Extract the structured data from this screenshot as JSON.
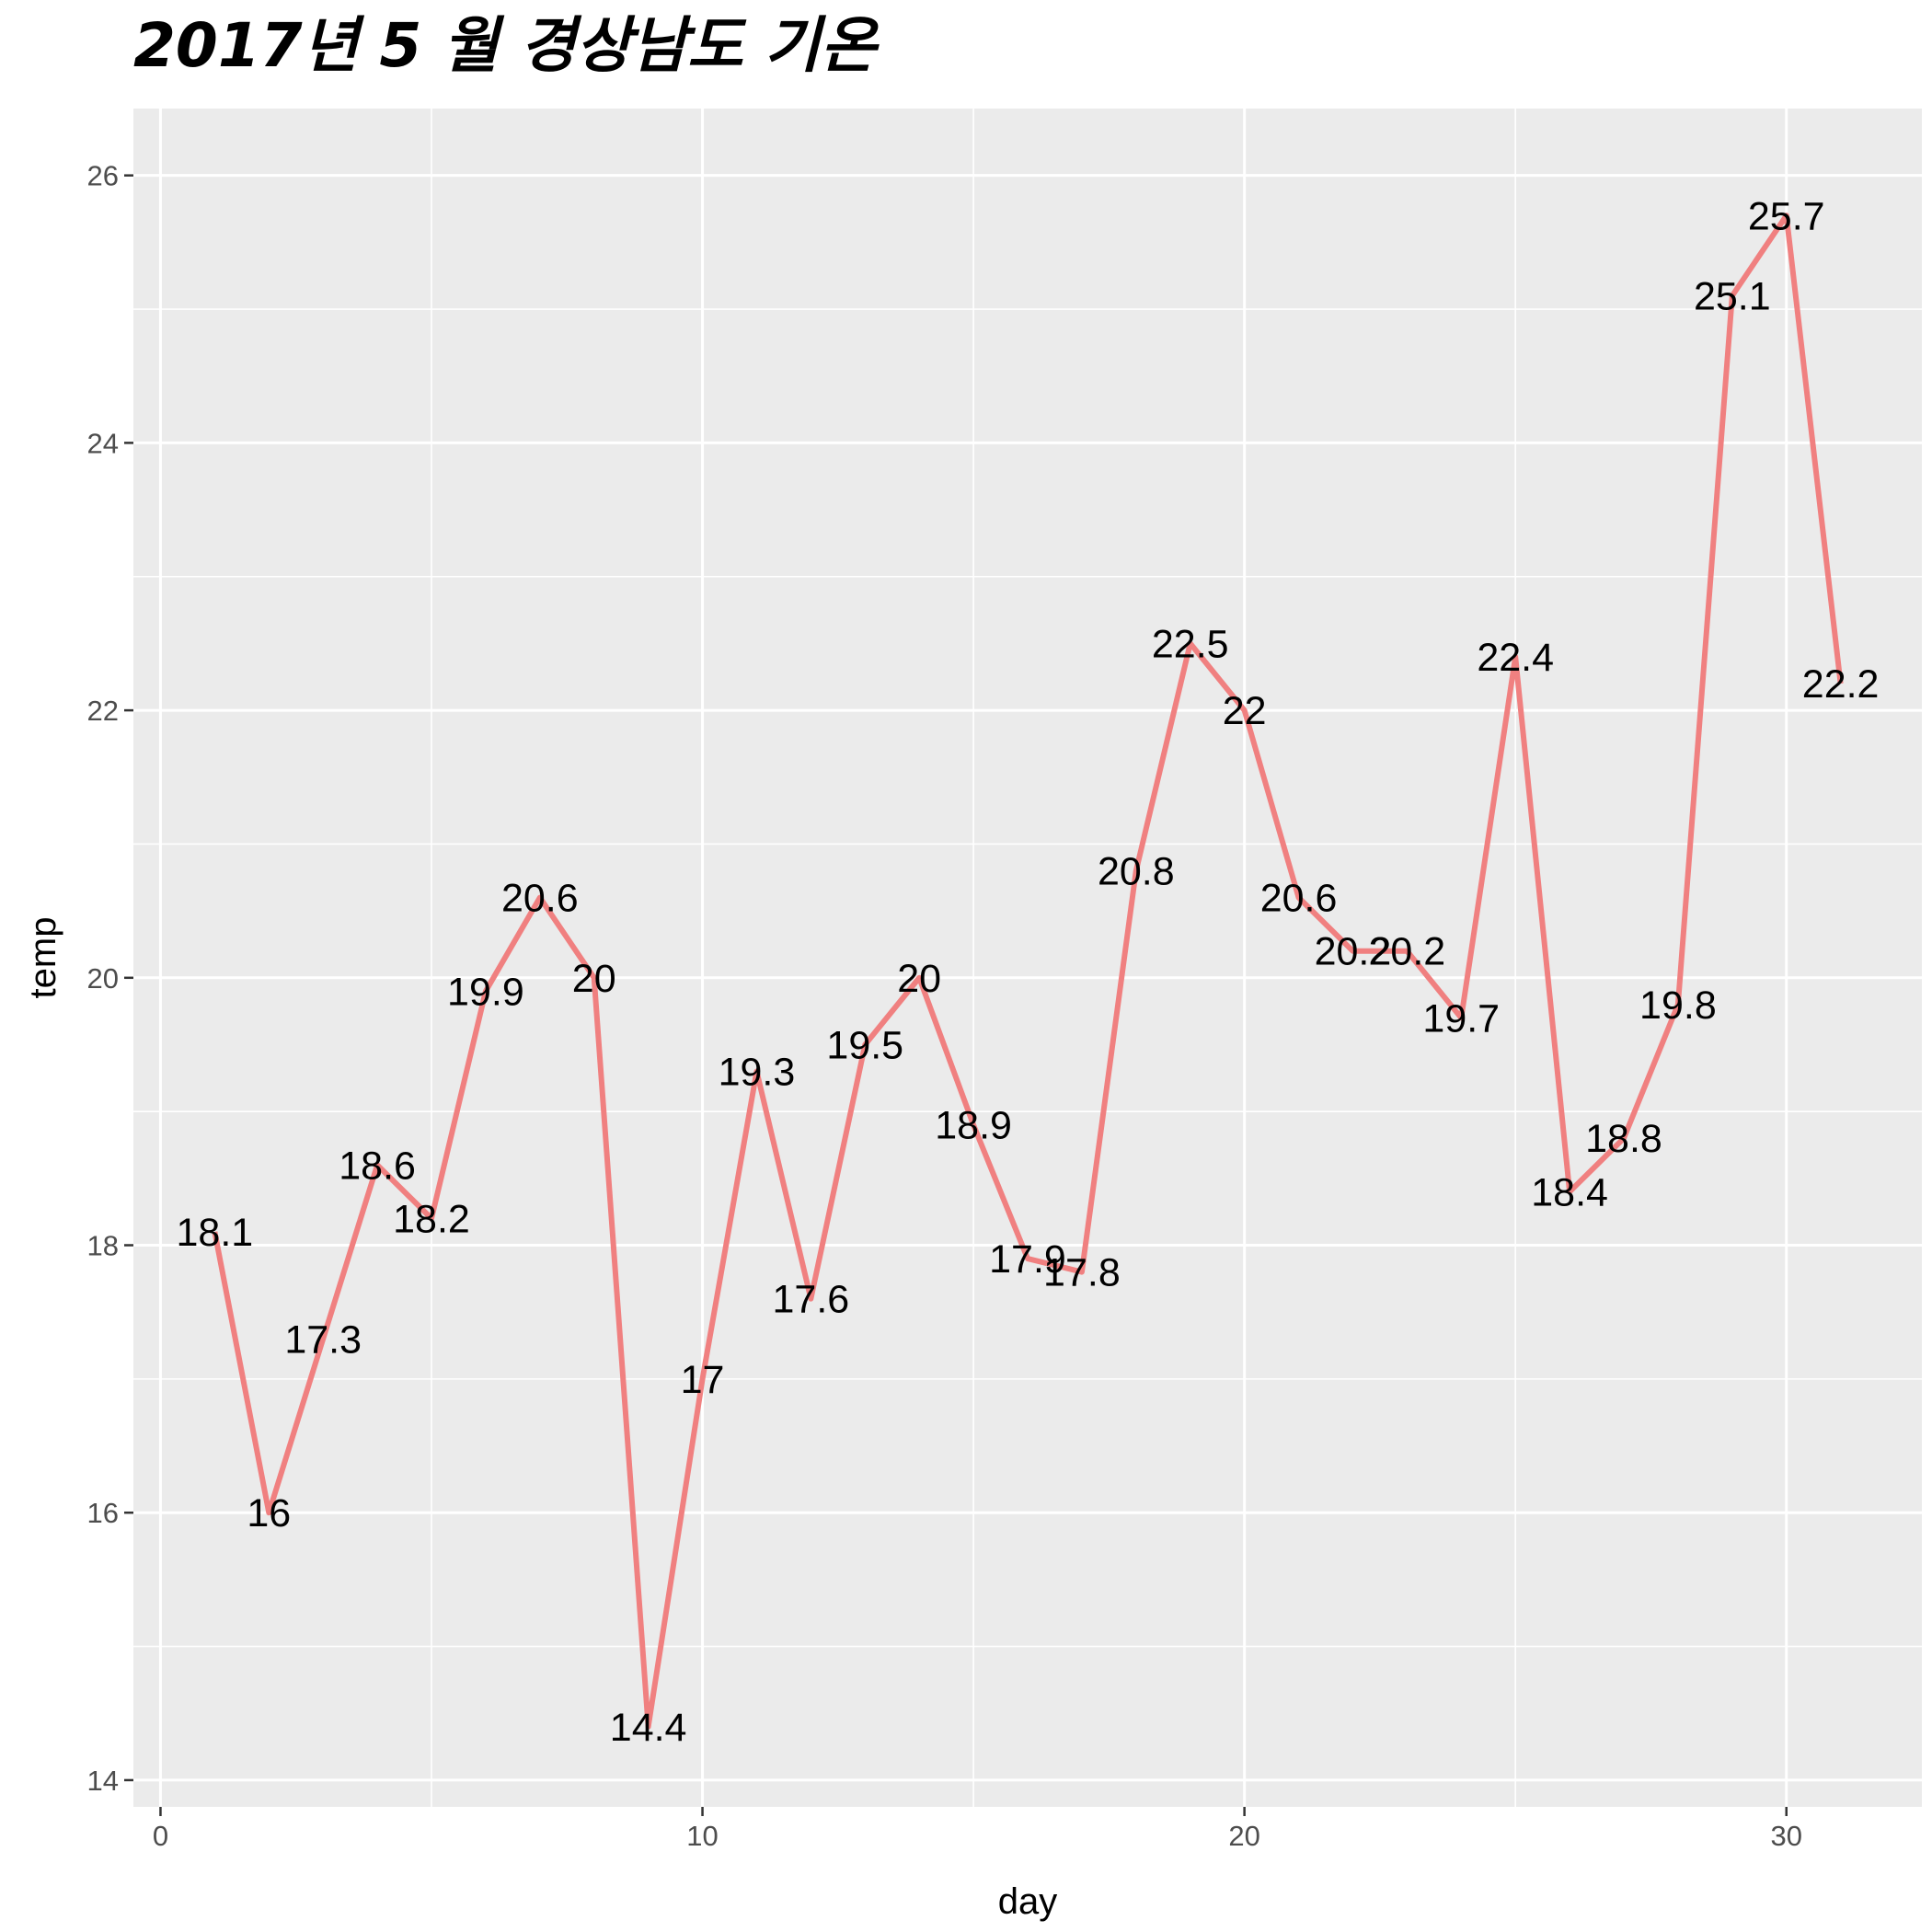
{
  "chart_data": {
    "type": "line",
    "title": "2017년 5 월 경상남도 기온",
    "xlabel": "day",
    "ylabel": "temp",
    "x": [
      1,
      2,
      3,
      4,
      5,
      6,
      7,
      8,
      9,
      10,
      11,
      12,
      13,
      14,
      15,
      16,
      17,
      18,
      19,
      20,
      21,
      22,
      23,
      24,
      25,
      26,
      27,
      28,
      29,
      30,
      31
    ],
    "series": [
      {
        "values": [
          18.1,
          16,
          17.3,
          18.6,
          18.2,
          19.9,
          20.6,
          20,
          14.4,
          17,
          19.3,
          17.6,
          19.5,
          20,
          18.9,
          17.9,
          17.8,
          20.8,
          22.5,
          22,
          20.6,
          20.2,
          20.2,
          19.7,
          22.4,
          18.4,
          18.8,
          19.8,
          25.1,
          25.7,
          22.2
        ],
        "labels": [
          "18.1",
          "16",
          "17.3",
          "18.6",
          "18.2",
          "19.9",
          "20.6",
          "20",
          "14.4",
          "17",
          "19.3",
          "17.6",
          "19.5",
          "20",
          "18.9",
          "17.9",
          "17.8",
          "20.8",
          "22.5",
          "22",
          "20.6",
          "20.2",
          "20.2",
          "19.7",
          "22.4",
          "18.4",
          "18.8",
          "19.8",
          "25.1",
          "25.7",
          "22.2"
        ],
        "color": "#f08080"
      }
    ],
    "xlim": [
      -0.5,
      32.5
    ],
    "ylim": [
      13.8,
      26.5
    ],
    "xticks": [
      0,
      10,
      20,
      30
    ],
    "xtick_labels": [
      "0",
      "10",
      "20",
      "30"
    ],
    "yticks": [
      14,
      16,
      18,
      20,
      22,
      24,
      26
    ],
    "ytick_labels": [
      "14",
      "16",
      "18",
      "20",
      "22",
      "24",
      "26"
    ],
    "grid": true,
    "legend": "none",
    "panel_background": "#ebebeb",
    "grid_color": "#ffffff"
  }
}
